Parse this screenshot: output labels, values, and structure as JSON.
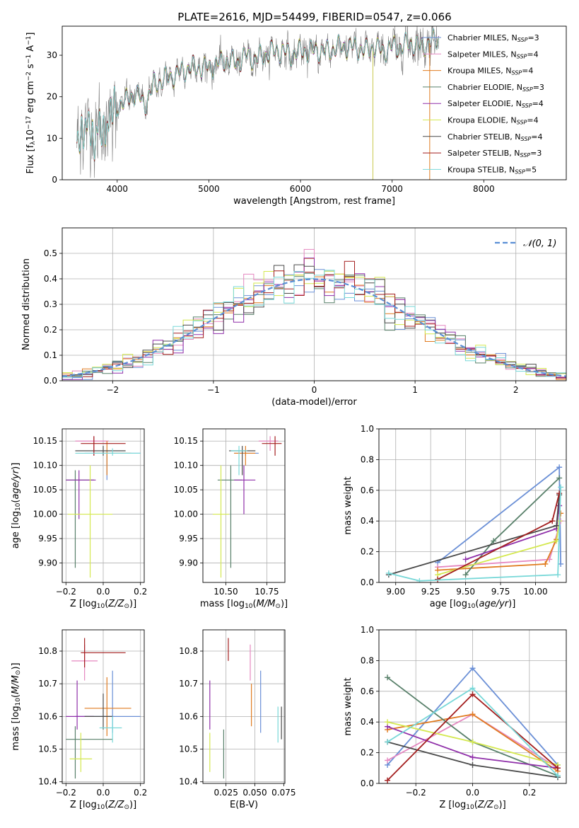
{
  "figure": {
    "title": "PLATE=2616, MJD=54499, FIBERID=0547, z=0.066"
  },
  "colors": {
    "Chabrier MILES": "#6a8fd6",
    "Salpeter MILES": "#e587c0",
    "Kroupa MILES": "#e07b20",
    "Chabrier ELODIE": "#58806a",
    "Salpeter ELODIE": "#8f2fa9",
    "Kroupa ELODIE": "#d4e84f",
    "Chabrier STELIB": "#4a4a4a",
    "Salpeter STELIB": "#a31d1d",
    "Kroupa STELIB": "#78d8d8",
    "data": "#808080",
    "gaussian": "#5b8fd6"
  },
  "chart_data": [
    {
      "id": "spectrum",
      "type": "line",
      "xlabel": "wavelength [Angstrom, rest frame]",
      "ylabel_parts": [
        "Flux [f",
        "λ",
        "10",
        "−17",
        " erg cm",
        "−2",
        " s",
        "−1",
        " A",
        "−1",
        "]"
      ],
      "xlim": [
        3400,
        8900
      ],
      "ylim": [
        0,
        37
      ],
      "xticks": [
        4000,
        5000,
        6000,
        7000,
        8000
      ],
      "yticks": [
        0,
        10,
        20,
        30
      ],
      "model_flux": {
        "x": [
          3550,
          3600,
          3650,
          3700,
          3750,
          3800,
          3850,
          3900,
          3950,
          4000,
          4100,
          4200,
          4300,
          4400,
          4500,
          4600,
          4700,
          4800,
          4900,
          5000,
          5100,
          5200,
          5300,
          5400,
          5500,
          5600,
          5700,
          5800,
          5900,
          6000,
          6100,
          6200,
          6300,
          6400,
          6500,
          6600,
          6700,
          6800,
          6900,
          7000,
          7100,
          7200,
          7300,
          7400,
          7500
        ],
        "y": [
          9,
          12,
          11,
          14,
          9,
          13,
          11,
          14,
          17,
          18,
          19,
          21,
          18,
          23,
          24,
          25,
          26,
          27,
          27,
          27,
          28,
          29,
          28,
          30,
          29,
          30,
          31,
          31,
          30,
          31,
          31,
          31,
          31,
          32,
          32,
          32,
          31,
          32,
          31,
          32,
          32,
          33,
          32,
          33,
          34
        ]
      },
      "legend": [
        {
          "name": "Chabrier MILES",
          "nssp": "3"
        },
        {
          "name": "Salpeter MILES",
          "nssp": "4"
        },
        {
          "name": "Kroupa MILES",
          "nssp": "4"
        },
        {
          "name": "Chabrier ELODIE",
          "nssp": "3"
        },
        {
          "name": "Salpeter ELODIE",
          "nssp": "4"
        },
        {
          "name": "Kroupa ELODIE",
          "nssp": "4"
        },
        {
          "name": "Chabrier STELIB",
          "nssp": "4"
        },
        {
          "name": "Salpeter STELIB",
          "nssp": "3"
        },
        {
          "name": "Kroupa STELIB",
          "nssp": "5"
        }
      ],
      "legend_prefix": "N",
      "legend_sub": "SSP"
    },
    {
      "id": "residual-histogram",
      "type": "line",
      "xlabel": "(data-model)/error",
      "ylabel": "Normed distribution",
      "xlim": [
        -2.5,
        2.5
      ],
      "ylim": [
        0,
        0.6
      ],
      "xticks": [
        -2,
        -1,
        0,
        1,
        2
      ],
      "yticks": [
        0.0,
        0.1,
        0.2,
        0.3,
        0.4,
        0.5
      ],
      "gaussian_label": "𝒩(0, 1)",
      "bin_width": 0.1,
      "grid": true
    },
    {
      "id": "age-vs-z",
      "type": "scatter",
      "xlabel": "Z [log10(Z/Z⊙)]",
      "ylabel": "age  [log10(age/yr)]",
      "xlim": [
        -0.22,
        0.22
      ],
      "ylim": [
        9.86,
        10.175
      ],
      "xticks": [
        -0.2,
        0.0,
        0.2
      ],
      "yticks": [
        9.9,
        9.95,
        10.0,
        10.05,
        10.1,
        10.15
      ],
      "points": [
        {
          "s": "Chabrier MILES",
          "x": 0.02,
          "y": 10.125,
          "xlo": -0.1,
          "xhi": 0.2,
          "ylo": 10.07,
          "yhi": 10.125
        },
        {
          "s": "Salpeter MILES",
          "x": -0.05,
          "y": 10.15,
          "xlo": -0.15,
          "xhi": 0.03,
          "ylo": 10.12,
          "yhi": 10.16
        },
        {
          "s": "Kroupa MILES",
          "x": 0.02,
          "y": 10.125,
          "xlo": -0.05,
          "xhi": 0.15,
          "ylo": 10.08,
          "yhi": 10.15
        },
        {
          "s": "Chabrier ELODIE",
          "x": -0.15,
          "y": 10.07,
          "xlo": -0.2,
          "xhi": -0.05,
          "ylo": 9.89,
          "yhi": 10.09
        },
        {
          "s": "Salpeter ELODIE",
          "x": -0.13,
          "y": 10.07,
          "xlo": -0.2,
          "xhi": -0.04,
          "ylo": 9.99,
          "yhi": 10.09
        },
        {
          "s": "Kroupa ELODIE",
          "x": -0.07,
          "y": 10.0,
          "xlo": -0.19,
          "xhi": 0.05,
          "ylo": 9.87,
          "yhi": 10.1
        },
        {
          "s": "Chabrier STELIB",
          "x": 0.0,
          "y": 10.13,
          "xlo": -0.15,
          "xhi": 0.12,
          "ylo": 10.12,
          "yhi": 10.14
        },
        {
          "s": "Salpeter STELIB",
          "x": -0.05,
          "y": 10.145,
          "xlo": -0.12,
          "xhi": 0.12,
          "ylo": 10.12,
          "yhi": 10.16
        },
        {
          "s": "Kroupa STELIB",
          "x": 0.05,
          "y": 10.125,
          "xlo": -0.15,
          "xhi": 0.2,
          "ylo": 10.12,
          "yhi": 10.135
        }
      ]
    },
    {
      "id": "age-vs-mass",
      "type": "scatter",
      "xlabel": "mass [log10(M/M⊙)]",
      "ylabel": "",
      "xlim": [
        10.36,
        10.86
      ],
      "ylim": [
        9.86,
        10.175
      ],
      "xticks": [
        10.5,
        10.75
      ],
      "yticks": [
        9.9,
        9.95,
        10.0,
        10.05,
        10.1,
        10.15
      ],
      "points": [
        {
          "s": "Chabrier MILES",
          "x": 10.62,
          "y": 10.125,
          "xlo": 10.55,
          "xhi": 10.7,
          "ylo": 10.12,
          "yhi": 10.13
        },
        {
          "s": "Salpeter MILES",
          "x": 10.77,
          "y": 10.15,
          "xlo": 10.7,
          "xhi": 10.82,
          "ylo": 10.13,
          "yhi": 10.16
        },
        {
          "s": "Kroupa MILES",
          "x": 10.62,
          "y": 10.125,
          "xlo": 10.55,
          "xhi": 10.68,
          "ylo": 10.1,
          "yhi": 10.14
        },
        {
          "s": "Chabrier ELODIE",
          "x": 10.53,
          "y": 10.07,
          "xlo": 10.45,
          "xhi": 10.6,
          "ylo": 9.89,
          "yhi": 10.1
        },
        {
          "s": "Salpeter ELODIE",
          "x": 10.61,
          "y": 10.07,
          "xlo": 10.55,
          "xhi": 10.68,
          "ylo": 10.0,
          "yhi": 10.1
        },
        {
          "s": "Kroupa ELODIE",
          "x": 10.47,
          "y": 10.0,
          "xlo": 10.42,
          "xhi": 10.52,
          "ylo": 9.87,
          "yhi": 10.1
        },
        {
          "s": "Chabrier STELIB",
          "x": 10.6,
          "y": 10.13,
          "xlo": 10.52,
          "xhi": 10.68,
          "ylo": 10.08,
          "yhi": 10.14
        },
        {
          "s": "Salpeter STELIB",
          "x": 10.8,
          "y": 10.145,
          "xlo": 10.72,
          "xhi": 10.84,
          "ylo": 10.12,
          "yhi": 10.16
        },
        {
          "s": "Kroupa STELIB",
          "x": 10.58,
          "y": 10.13,
          "xlo": 10.53,
          "xhi": 10.63,
          "ylo": 10.08,
          "yhi": 10.14
        }
      ]
    },
    {
      "id": "mass-weight-vs-age",
      "type": "line",
      "xlabel": "age  [log10(age/yr)]",
      "ylabel": "mass weight",
      "xlim": [
        8.88,
        10.22
      ],
      "ylim": [
        0,
        1
      ],
      "xticks": [
        9.0,
        9.25,
        9.5,
        9.75,
        10.0
      ],
      "yticks": [
        0.0,
        0.2,
        0.4,
        0.6,
        0.8,
        1.0
      ],
      "grid": true,
      "series": [
        {
          "s": "Chabrier MILES",
          "x": [
            9.3,
            10.17,
            10.18
          ],
          "y": [
            0.13,
            0.75,
            0.12
          ]
        },
        {
          "s": "Salpeter MILES",
          "x": [
            9.3,
            10.1,
            10.18
          ],
          "y": [
            0.1,
            0.15,
            0.4
          ]
        },
        {
          "s": "Kroupa MILES",
          "x": [
            9.3,
            10.07,
            10.15,
            10.18
          ],
          "y": [
            0.08,
            0.12,
            0.28,
            0.45
          ]
        },
        {
          "s": "Chabrier ELODIE",
          "x": [
            9.5,
            9.7,
            10.17
          ],
          "y": [
            0.05,
            0.27,
            0.68
          ]
        },
        {
          "s": "Salpeter ELODIE",
          "x": [
            9.5,
            10.15,
            10.17
          ],
          "y": [
            0.15,
            0.35,
            0.5
          ]
        },
        {
          "s": "Kroupa ELODIE",
          "x": [
            9.3,
            10.15,
            10.17
          ],
          "y": [
            0.05,
            0.27,
            0.4
          ]
        },
        {
          "s": "Chabrier STELIB",
          "x": [
            8.95,
            10.15,
            10.17
          ],
          "y": [
            0.05,
            0.37,
            0.57
          ]
        },
        {
          "s": "Salpeter STELIB",
          "x": [
            9.3,
            10.12,
            10.17
          ],
          "y": [
            0.02,
            0.4,
            0.58
          ]
        },
        {
          "s": "Kroupa STELIB",
          "x": [
            8.95,
            9.17,
            10.16,
            10.18
          ],
          "y": [
            0.06,
            0.01,
            0.05,
            0.62
          ]
        }
      ]
    },
    {
      "id": "mass-vs-z",
      "type": "scatter",
      "xlabel": "Z [log10(Z/Z⊙)]",
      "ylabel": "mass [log10(M/M⊙)]",
      "xlim": [
        -0.22,
        0.22
      ],
      "ylim": [
        10.395,
        10.865
      ],
      "xticks": [
        -0.2,
        0.0,
        0.2
      ],
      "yticks": [
        10.4,
        10.5,
        10.6,
        10.7,
        10.8
      ],
      "points": [
        {
          "s": "Chabrier MILES",
          "x": 0.05,
          "y": 10.6,
          "xlo": -0.15,
          "xhi": 0.2,
          "ylo": 10.55,
          "yhi": 10.74
        },
        {
          "s": "Salpeter MILES",
          "x": -0.1,
          "y": 10.77,
          "xlo": -0.17,
          "xhi": -0.03,
          "ylo": 10.71,
          "yhi": 10.82
        },
        {
          "s": "Kroupa MILES",
          "x": 0.02,
          "y": 10.625,
          "xlo": -0.1,
          "xhi": 0.15,
          "ylo": 10.54,
          "yhi": 10.72
        },
        {
          "s": "Chabrier ELODIE",
          "x": -0.15,
          "y": 10.53,
          "xlo": -0.2,
          "xhi": 0.05,
          "ylo": 10.41,
          "yhi": 10.57
        },
        {
          "s": "Salpeter ELODIE",
          "x": -0.14,
          "y": 10.6,
          "xlo": -0.2,
          "xhi": -0.05,
          "ylo": 10.56,
          "yhi": 10.71
        },
        {
          "s": "Kroupa ELODIE",
          "x": -0.12,
          "y": 10.47,
          "xlo": -0.18,
          "xhi": -0.06,
          "ylo": 10.43,
          "yhi": 10.55
        },
        {
          "s": "Chabrier STELIB",
          "x": 0.0,
          "y": 10.6,
          "xlo": -0.1,
          "xhi": 0.05,
          "ylo": 10.56,
          "yhi": 10.67
        },
        {
          "s": "Salpeter STELIB",
          "x": -0.1,
          "y": 10.795,
          "xlo": -0.12,
          "xhi": 0.12,
          "ylo": 10.75,
          "yhi": 10.84
        },
        {
          "s": "Kroupa STELIB",
          "x": 0.05,
          "y": 10.565,
          "xlo": -0.02,
          "xhi": 0.1,
          "ylo": 10.52,
          "yhi": 10.6
        }
      ]
    },
    {
      "id": "mass-vs-ebv",
      "type": "scatter",
      "xlabel": "E(B-V)",
      "ylabel": "",
      "xlim": [
        0.005,
        0.076
      ],
      "ylim": [
        10.395,
        10.865
      ],
      "xticks": [
        0.025,
        0.05,
        0.075
      ],
      "yticks": [
        10.4,
        10.5,
        10.6,
        10.7,
        10.8
      ],
      "points": [
        {
          "s": "Chabrier MILES",
          "x": 0.055,
          "ylo": 10.55,
          "yhi": 10.74
        },
        {
          "s": "Salpeter MILES",
          "x": 0.046,
          "ylo": 10.71,
          "yhi": 10.82
        },
        {
          "s": "Kroupa MILES",
          "x": 0.047,
          "ylo": 10.57,
          "yhi": 10.7
        },
        {
          "s": "Chabrier ELODIE",
          "x": 0.023,
          "ylo": 10.41,
          "yhi": 10.56
        },
        {
          "s": "Salpeter ELODIE",
          "x": 0.011,
          "ylo": 10.56,
          "yhi": 10.71
        },
        {
          "s": "Kroupa ELODIE",
          "x": 0.011,
          "ylo": 10.43,
          "yhi": 10.55
        },
        {
          "s": "Chabrier STELIB",
          "x": 0.073,
          "ylo": 10.53,
          "yhi": 10.63
        },
        {
          "s": "Salpeter STELIB",
          "x": 0.027,
          "ylo": 10.77,
          "yhi": 10.84
        },
        {
          "s": "Kroupa STELIB",
          "x": 0.07,
          "ylo": 10.52,
          "yhi": 10.63
        }
      ]
    },
    {
      "id": "mass-weight-vs-z",
      "type": "line",
      "xlabel": "Z [log10(Z/Z⊙)]",
      "ylabel": "mass weight",
      "xlim": [
        -0.33,
        0.33
      ],
      "ylim": [
        0,
        1
      ],
      "xticks": [
        -0.2,
        0.0,
        0.2
      ],
      "yticks": [
        0.0,
        0.2,
        0.4,
        0.6,
        0.8,
        1.0
      ],
      "grid": true,
      "series": [
        {
          "s": "Chabrier MILES",
          "x": [
            -0.3,
            0.0,
            0.3
          ],
          "y": [
            0.12,
            0.75,
            0.12
          ]
        },
        {
          "s": "Salpeter MILES",
          "x": [
            -0.3,
            0.0,
            0.3
          ],
          "y": [
            0.15,
            0.45,
            0.1
          ]
        },
        {
          "s": "Kroupa MILES",
          "x": [
            -0.3,
            0.0,
            0.3
          ],
          "y": [
            0.35,
            0.45,
            0.08
          ]
        },
        {
          "s": "Chabrier ELODIE",
          "x": [
            -0.3,
            0.0,
            0.3
          ],
          "y": [
            0.69,
            0.27,
            0.05
          ]
        },
        {
          "s": "Salpeter ELODIE",
          "x": [
            -0.3,
            0.0,
            0.3
          ],
          "y": [
            0.37,
            0.17,
            0.1
          ]
        },
        {
          "s": "Kroupa ELODIE",
          "x": [
            -0.3,
            0.0,
            0.3
          ],
          "y": [
            0.4,
            0.27,
            0.12
          ]
        },
        {
          "s": "Chabrier STELIB",
          "x": [
            -0.3,
            0.0,
            0.3
          ],
          "y": [
            0.27,
            0.12,
            0.04
          ]
        },
        {
          "s": "Salpeter STELIB",
          "x": [
            -0.3,
            0.0,
            0.3
          ],
          "y": [
            0.02,
            0.58,
            0.1
          ]
        },
        {
          "s": "Kroupa STELIB",
          "x": [
            -0.3,
            0.0,
            0.3
          ],
          "y": [
            0.27,
            0.62,
            0.05
          ]
        }
      ]
    }
  ]
}
